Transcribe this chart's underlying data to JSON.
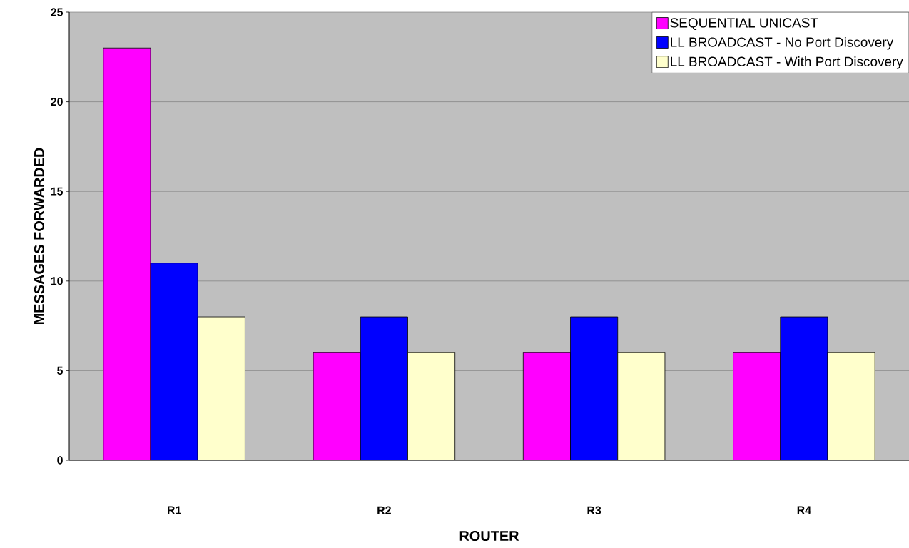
{
  "chart_data": {
    "type": "bar",
    "xlabel": "ROUTER",
    "ylabel": "MESSAGES FORWARDED",
    "categories": [
      "R1",
      "R2",
      "R3",
      "R4"
    ],
    "series": [
      {
        "name": "SEQUENTIAL UNICAST",
        "color": "#ff00ff",
        "values": [
          23,
          6,
          6,
          6
        ]
      },
      {
        "name": "LL BROADCAST - No Port Discovery",
        "color": "#0000ff",
        "values": [
          11,
          8,
          8,
          8
        ]
      },
      {
        "name": "LL BROADCAST - With Port Discovery",
        "color": "#ffffcc",
        "values": [
          8,
          6,
          6,
          6
        ]
      }
    ],
    "ylim": [
      0,
      25
    ],
    "yticks": [
      0,
      5,
      10,
      15,
      20,
      25
    ],
    "grid": "y",
    "legend": "top right"
  }
}
